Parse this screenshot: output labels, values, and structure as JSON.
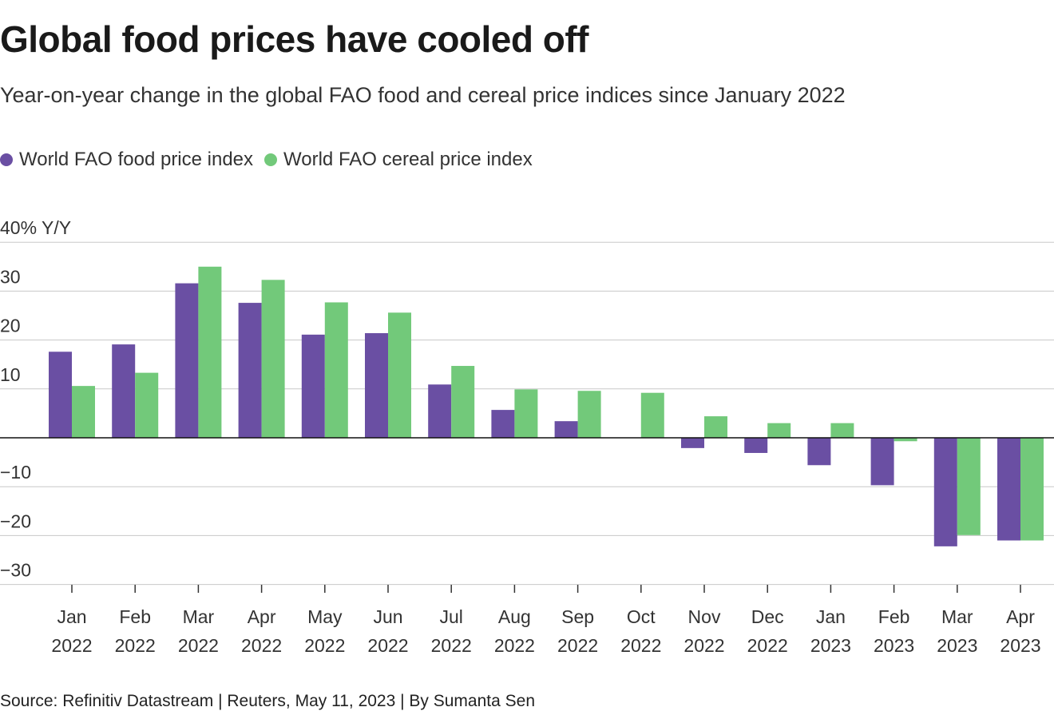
{
  "title": "Global food prices have cooled off",
  "subtitle": "Year-on-year change in the global FAO food and cereal price indices since January 2022",
  "source": "Source: Refinitiv Datastream | Reuters, May 11, 2023 | By Sumanta Sen",
  "colors": {
    "food": "#6a4fa3",
    "cereal": "#72c97a",
    "grid": "#c8c8c8",
    "zero": "#111111"
  },
  "chart_data": {
    "type": "bar",
    "ylabel": "40% Y/Y",
    "ylim": [
      -30,
      40
    ],
    "yticks": [
      {
        "value": 40,
        "label": "40% Y/Y"
      },
      {
        "value": 30,
        "label": "30"
      },
      {
        "value": 20,
        "label": "20"
      },
      {
        "value": 10,
        "label": "10"
      },
      {
        "value": -10,
        "label": "−10"
      },
      {
        "value": -20,
        "label": "−20"
      },
      {
        "value": -30,
        "label": "−30"
      }
    ],
    "grid": true,
    "legend_position": "top-left",
    "categories": [
      {
        "month": "Jan",
        "year": "2022"
      },
      {
        "month": "Feb",
        "year": "2022"
      },
      {
        "month": "Mar",
        "year": "2022"
      },
      {
        "month": "Apr",
        "year": "2022"
      },
      {
        "month": "May",
        "year": "2022"
      },
      {
        "month": "Jun",
        "year": "2022"
      },
      {
        "month": "Jul",
        "year": "2022"
      },
      {
        "month": "Aug",
        "year": "2022"
      },
      {
        "month": "Sep",
        "year": "2022"
      },
      {
        "month": "Oct",
        "year": "2022"
      },
      {
        "month": "Nov",
        "year": "2022"
      },
      {
        "month": "Dec",
        "year": "2022"
      },
      {
        "month": "Jan",
        "year": "2023"
      },
      {
        "month": "Feb",
        "year": "2023"
      },
      {
        "month": "Mar",
        "year": "2023"
      },
      {
        "month": "Apr",
        "year": "2023"
      }
    ],
    "series": [
      {
        "name": "World FAO food price index",
        "values": [
          17.6,
          19.1,
          31.6,
          27.6,
          21.1,
          21.4,
          10.9,
          5.7,
          3.4,
          0.0,
          -2.1,
          -3.1,
          -5.6,
          -9.7,
          -22.2,
          -21.0
        ]
      },
      {
        "name": "World FAO cereal price index",
        "values": [
          10.6,
          13.3,
          35.0,
          32.3,
          27.7,
          25.6,
          14.7,
          9.9,
          9.6,
          9.2,
          4.4,
          3.0,
          3.0,
          -0.7,
          -19.9,
          -21.0
        ]
      }
    ]
  }
}
